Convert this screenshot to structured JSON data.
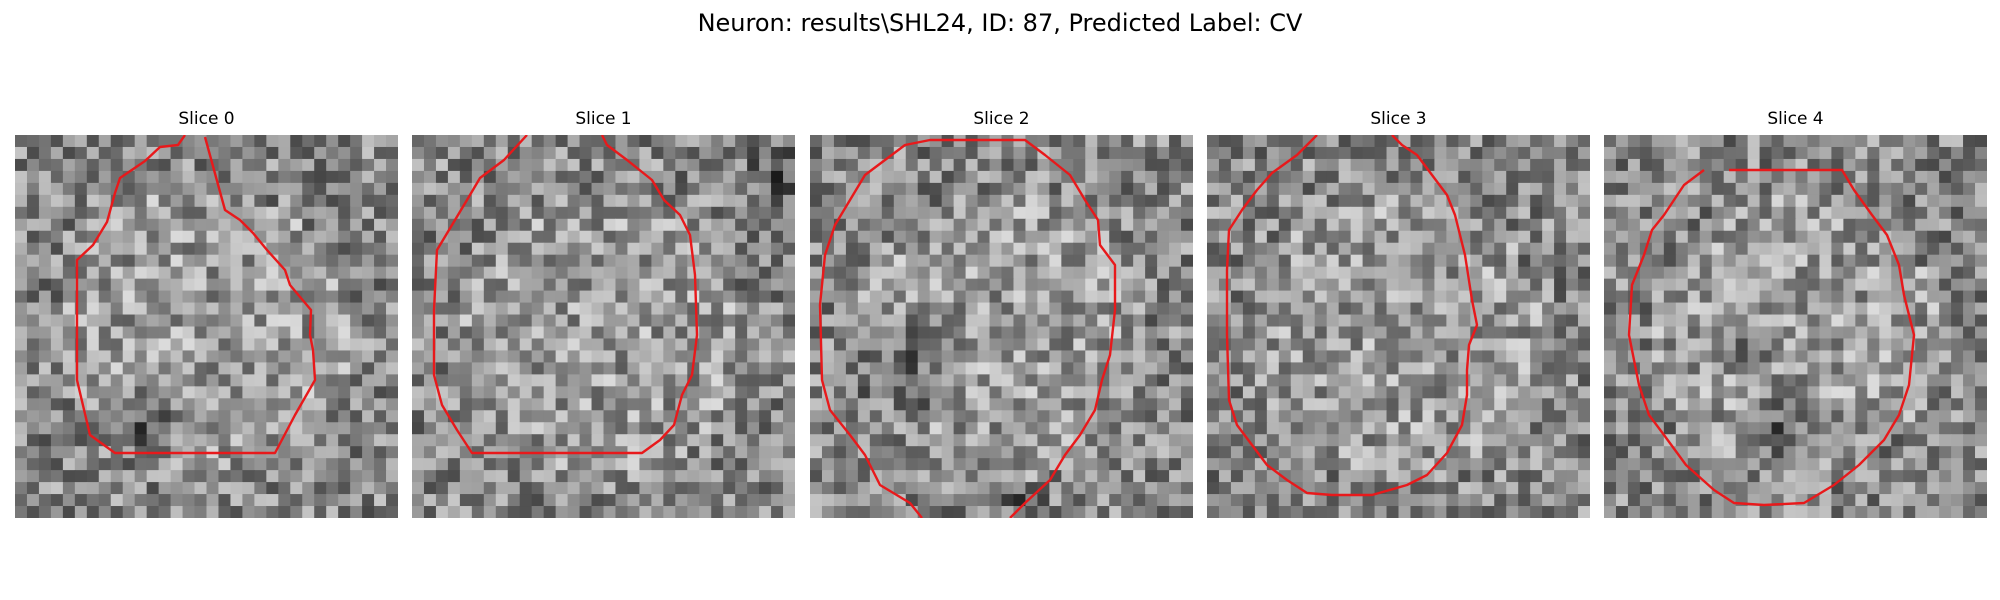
{
  "figure_title": "Neuron: results\\SHL24, ID: 87, Predicted Label: CV",
  "contour_color": "#e8191b",
  "panels": [
    {
      "title": "Slice 0"
    },
    {
      "title": "Slice 1"
    },
    {
      "title": "Slice 2"
    },
    {
      "title": "Slice 3"
    },
    {
      "title": "Slice 4"
    }
  ]
}
